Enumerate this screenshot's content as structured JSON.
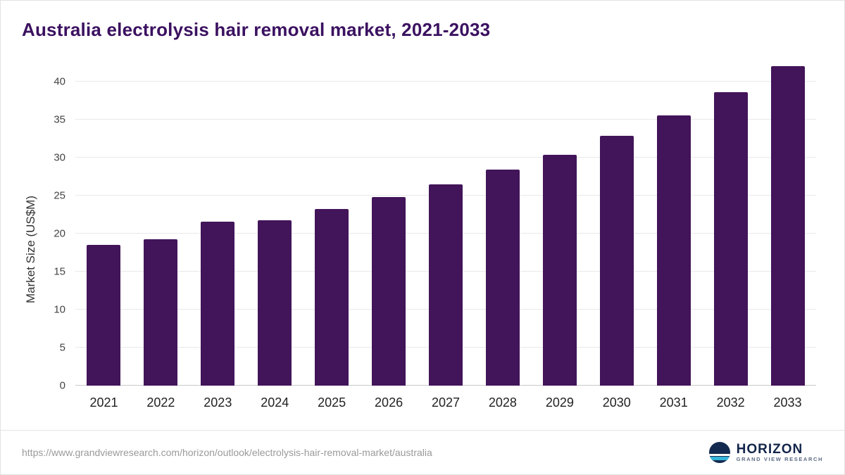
{
  "title": "Australia electrolysis hair removal market, 2021-2033",
  "chart_data": {
    "type": "bar",
    "categories": [
      "2021",
      "2022",
      "2023",
      "2024",
      "2025",
      "2026",
      "2027",
      "2028",
      "2029",
      "2030",
      "2031",
      "2032",
      "2033"
    ],
    "values": [
      18.5,
      19.3,
      21.6,
      21.8,
      23.2,
      24.8,
      26.5,
      28.4,
      30.4,
      32.9,
      35.6,
      38.6,
      42.0
    ],
    "title": "Australia electrolysis hair removal market, 2021-2033",
    "xlabel": "",
    "ylabel": "Market Size (US$M)",
    "ylim": [
      0,
      40
    ],
    "yticks": [
      0,
      5,
      10,
      15,
      20,
      25,
      30,
      35,
      40
    ],
    "grid": true,
    "legend": "none",
    "bar_color": "#421459"
  },
  "colors": {
    "title": "#3b1160",
    "bar": "#421459",
    "gridline": "#e8e8e8",
    "logo_navy": "#142a50",
    "logo_teal": "#35b5d9"
  },
  "footer": {
    "source_url": "https://www.grandviewresearch.com/horizon/outlook/electrolysis-hair-removal-market/australia",
    "logo_title": "HORIZON",
    "logo_subtitle": "GRAND VIEW RESEARCH"
  }
}
